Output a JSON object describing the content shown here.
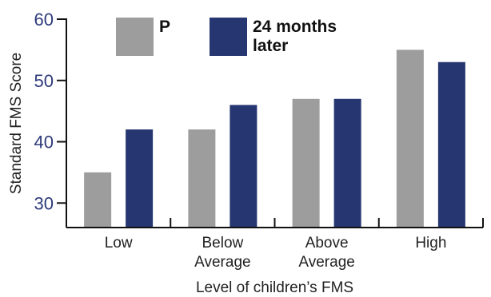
{
  "chart_data": {
    "type": "bar",
    "categories": [
      [
        "Low"
      ],
      [
        "Below",
        "Average"
      ],
      [
        "Above",
        "Average"
      ],
      [
        "High"
      ]
    ],
    "series": [
      {
        "name": "P",
        "values": [
          35,
          42,
          47,
          55
        ],
        "color": "#9d9d9d"
      },
      {
        "name": "24 months later",
        "name_lines": [
          "24 months",
          "later"
        ],
        "values": [
          42,
          46,
          47,
          53
        ],
        "color": "#263670"
      }
    ],
    "title": "",
    "xlabel": "Level of children’s FMS",
    "ylabel": "Standard FMS Score",
    "ylim": [
      26,
      60
    ],
    "yticks": [
      30,
      40,
      50,
      60
    ],
    "grid": false,
    "legend": "top-left"
  }
}
